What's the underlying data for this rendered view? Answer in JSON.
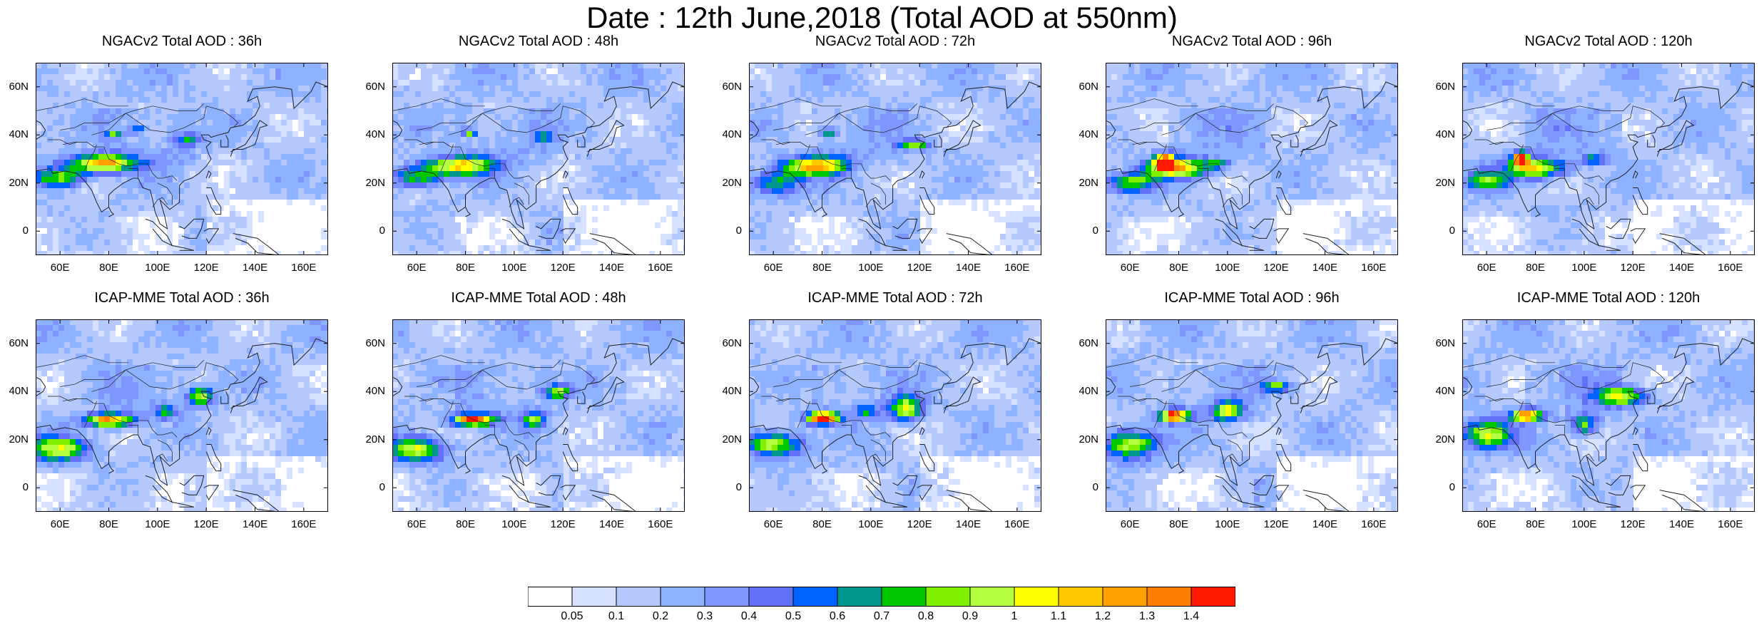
{
  "title": "Date : 12th June,2018 (Total AOD at 550nm)",
  "panels": [
    {
      "title": "NGACv2 Total AOD : 36h",
      "model": "NGACv2",
      "lead": "36h"
    },
    {
      "title": "NGACv2 Total AOD : 48h",
      "model": "NGACv2",
      "lead": "48h"
    },
    {
      "title": "NGACv2 Total AOD : 72h",
      "model": "NGACv2",
      "lead": "72h"
    },
    {
      "title": "NGACv2 Total AOD : 96h",
      "model": "NGACv2",
      "lead": "96h"
    },
    {
      "title": "NGACv2 Total AOD : 120h",
      "model": "NGACv2",
      "lead": "120h"
    },
    {
      "title": "ICAP-MME Total AOD : 36h",
      "model": "ICAP-MME",
      "lead": "36h"
    },
    {
      "title": "ICAP-MME Total AOD : 48h",
      "model": "ICAP-MME",
      "lead": "48h"
    },
    {
      "title": "ICAP-MME Total AOD : 72h",
      "model": "ICAP-MME",
      "lead": "72h"
    },
    {
      "title": "ICAP-MME Total AOD : 96h",
      "model": "ICAP-MME",
      "lead": "96h"
    },
    {
      "title": "ICAP-MME Total AOD : 120h",
      "model": "ICAP-MME",
      "lead": "120h"
    }
  ],
  "map_extent": {
    "lon": [
      50,
      170
    ],
    "lat": [
      -10,
      70
    ]
  },
  "lat_ticks": [
    {
      "value": 0,
      "label": "0"
    },
    {
      "value": 20,
      "label": "20N"
    },
    {
      "value": 40,
      "label": "40N"
    },
    {
      "value": 60,
      "label": "60N"
    }
  ],
  "lon_ticks": [
    {
      "value": 60,
      "label": "60E"
    },
    {
      "value": 80,
      "label": "80E"
    },
    {
      "value": 100,
      "label": "100E"
    },
    {
      "value": 120,
      "label": "120E"
    },
    {
      "value": 140,
      "label": "140E"
    },
    {
      "value": 160,
      "label": "160E"
    }
  ],
  "colorbar": {
    "labels": [
      "0.05",
      "0.1",
      "0.2",
      "0.3",
      "0.4",
      "0.5",
      "0.6",
      "0.7",
      "0.8",
      "0.9",
      "1",
      "1.1",
      "1.2",
      "1.3",
      "1.4"
    ],
    "colors": [
      "#ffffff",
      "#d6e2ff",
      "#b5c9ff",
      "#8eb2ff",
      "#7f96ff",
      "#6370f8",
      "#0062ff",
      "#00968c",
      "#00c800",
      "#80f000",
      "#b4ff40",
      "#ffff00",
      "#ffc800",
      "#ffa000",
      "#ff7d00",
      "#ff1900"
    ]
  },
  "colors": {
    "coastline": "#222222",
    "background_ocean": "#b5c9ff"
  }
}
